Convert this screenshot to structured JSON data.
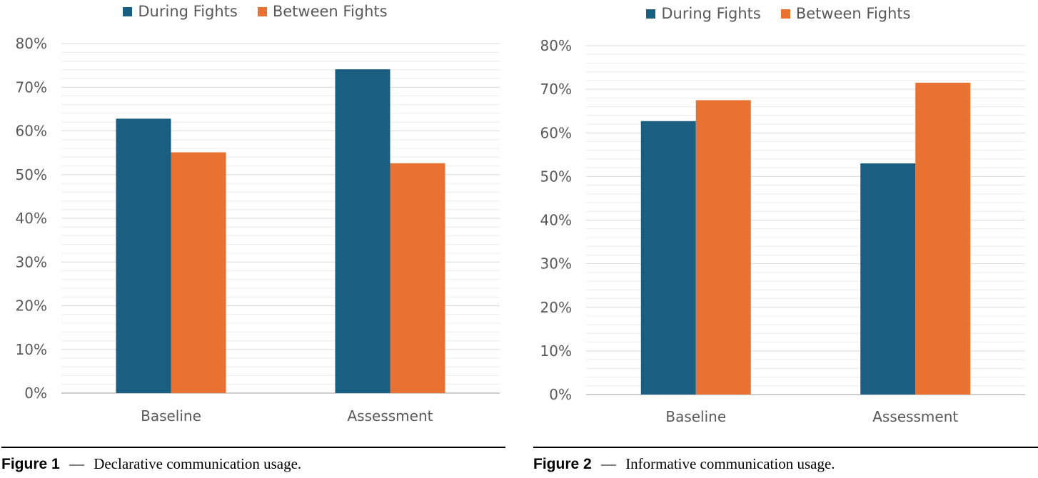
{
  "colors": {
    "during": "#1a5f82",
    "between": "#e97132",
    "grid": "#d9d9d9",
    "axis_text": "#595959"
  },
  "chart_data": [
    {
      "type": "bar",
      "categories": [
        "Baseline",
        "Assessment"
      ],
      "series": [
        {
          "name": "During Fights",
          "values": [
            62.8,
            74.1
          ]
        },
        {
          "name": "Between Fights",
          "values": [
            55.1,
            52.6
          ]
        }
      ],
      "yticks": [
        "0%",
        "10%",
        "20%",
        "30%",
        "40%",
        "50%",
        "60%",
        "70%",
        "80%"
      ],
      "ylim": [
        0,
        80
      ],
      "title": "",
      "xlabel": "",
      "ylabel": "",
      "legend": "top-center",
      "grid": true
    },
    {
      "type": "bar",
      "categories": [
        "Baseline",
        "Assessment"
      ],
      "series": [
        {
          "name": "During Fights",
          "values": [
            62.7,
            53.0
          ]
        },
        {
          "name": "Between Fights",
          "values": [
            67.5,
            71.5
          ]
        }
      ],
      "yticks": [
        "0%",
        "10%",
        "20%",
        "30%",
        "40%",
        "50%",
        "60%",
        "70%",
        "80%"
      ],
      "ylim": [
        0,
        80
      ],
      "title": "",
      "xlabel": "",
      "ylabel": "",
      "legend": "top-center",
      "grid": true
    }
  ],
  "captions": [
    {
      "label": "Figure 1",
      "dash": "—",
      "text": "Declarative communication usage."
    },
    {
      "label": "Figure 2",
      "dash": "—",
      "text": "Informative communication usage."
    }
  ]
}
